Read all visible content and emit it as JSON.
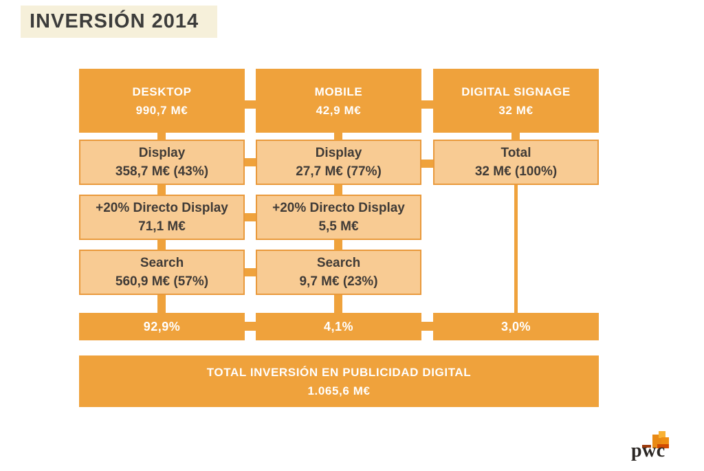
{
  "page": {
    "title": "INVERSIÓN 2014",
    "colors": {
      "orange": "#EFA23C",
      "light_orange": "#F8CB93",
      "box_border": "#E9993B",
      "title_background": "#F6F0DA",
      "dark_text": "#403B37",
      "white_text": "#FFFFFF"
    }
  },
  "columns": [
    {
      "id": "desktop",
      "header": {
        "title": "DESKTOP",
        "value": "990,7 M€"
      },
      "rows": [
        {
          "label": "Display",
          "value": "358,7 M€  (43%)"
        },
        {
          "label": "+20% Directo Display",
          "value": "71,1 M€"
        },
        {
          "label": "Search",
          "value": "560,9 M€ (57%)"
        }
      ],
      "share": "92,9%"
    },
    {
      "id": "mobile",
      "header": {
        "title": "MOBILE",
        "value": "42,9 M€"
      },
      "rows": [
        {
          "label": "Display",
          "value": "27,7 M€ (77%)"
        },
        {
          "label": "+20% Directo Display",
          "value": "5,5 M€"
        },
        {
          "label": "Search",
          "value": "9,7 M€ (23%)"
        }
      ],
      "share": "4,1%"
    },
    {
      "id": "digital-signage",
      "header": {
        "title": "DIGITAL SIGNAGE",
        "value": "32 M€"
      },
      "rows": [
        {
          "label": "Total",
          "value": "32 M€ (100%)"
        }
      ],
      "share": "3,0%"
    }
  ],
  "total": {
    "label": "TOTAL INVERSIÓN EN PUBLICIDAD DIGITAL",
    "value": "1.065,6 M€"
  },
  "footer": {
    "logo_text": "pwc"
  }
}
